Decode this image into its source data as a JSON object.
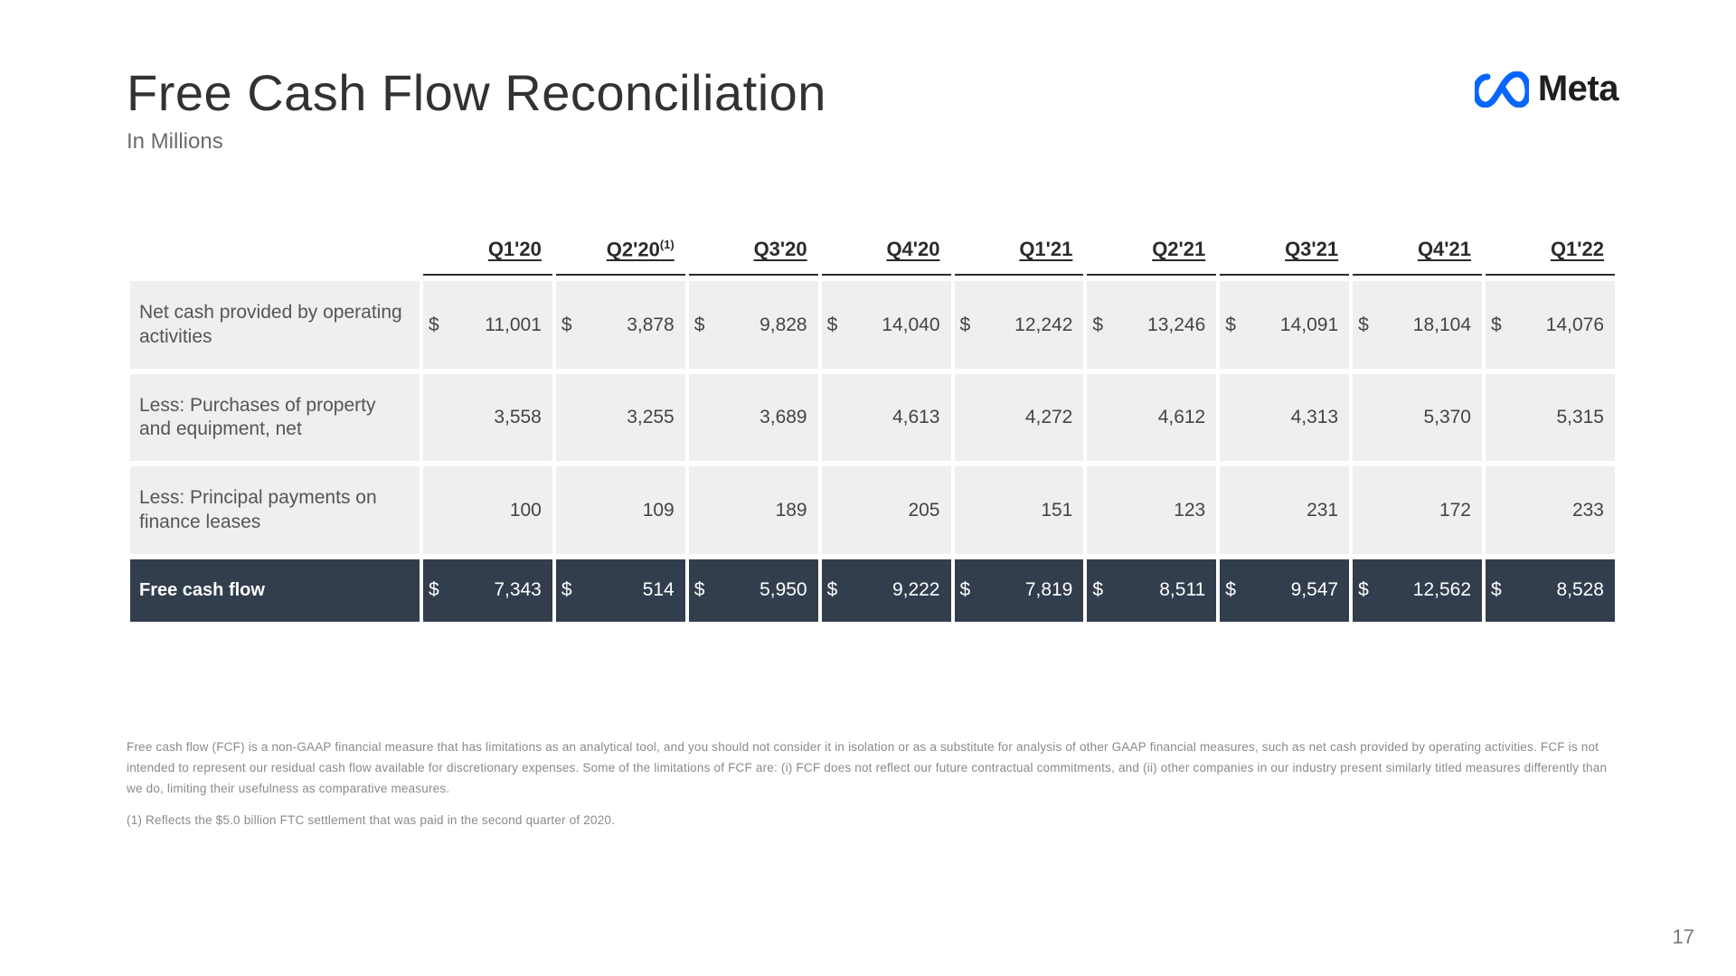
{
  "title": "Free Cash Flow Reconciliation",
  "subtitle": "In Millions",
  "brand": {
    "name": "Meta",
    "color": "#0866ff"
  },
  "page_number": "17",
  "table": {
    "columns": [
      "Q1'20",
      "Q2'20",
      "Q3'20",
      "Q4'20",
      "Q1'21",
      "Q2'21",
      "Q3'21",
      "Q4'21",
      "Q1'22"
    ],
    "column_super": [
      "",
      "(1)",
      "",
      "",
      "",
      "",
      "",
      "",
      ""
    ],
    "currency": "$",
    "rows": [
      {
        "label": "Net cash provided by operating activities",
        "show_currency": true,
        "values": [
          "11,001",
          "3,878",
          "9,828",
          "14,040",
          "12,242",
          "13,246",
          "14,091",
          "18,104",
          "14,076"
        ]
      },
      {
        "label": "Less: Purchases of property and equipment, net",
        "show_currency": false,
        "values": [
          "3,558",
          "3,255",
          "3,689",
          "4,613",
          "4,272",
          "4,612",
          "4,313",
          "5,370",
          "5,315"
        ]
      },
      {
        "label": "Less: Principal payments on finance leases",
        "show_currency": false,
        "values": [
          "100",
          "109",
          "189",
          "205",
          "151",
          "123",
          "231",
          "172",
          "233"
        ]
      }
    ],
    "total_row": {
      "label": "Free cash flow",
      "show_currency": true,
      "values": [
        "7,343",
        "514",
        "5,950",
        "9,222",
        "7,819",
        "8,511",
        "9,547",
        "12,562",
        "8,528"
      ]
    },
    "light_bg": "#efefef",
    "dark_bg": "#323e4d"
  },
  "footnotes": [
    "Free cash flow (FCF) is a non-GAAP financial measure that has limitations as an analytical tool, and you should not consider it in isolation or as a substitute for analysis of other GAAP financial measures, such as net cash provided by operating activities. FCF is not intended to represent our residual cash flow available for discretionary expenses. Some of the limitations of FCF are: (i) FCF does not reflect our future contractual commitments, and (ii) other companies in our industry present similarly titled measures differently than we do, limiting their usefulness as comparative measures.",
    "(1) Reflects the $5.0 billion FTC settlement that was paid in the second quarter of 2020."
  ]
}
